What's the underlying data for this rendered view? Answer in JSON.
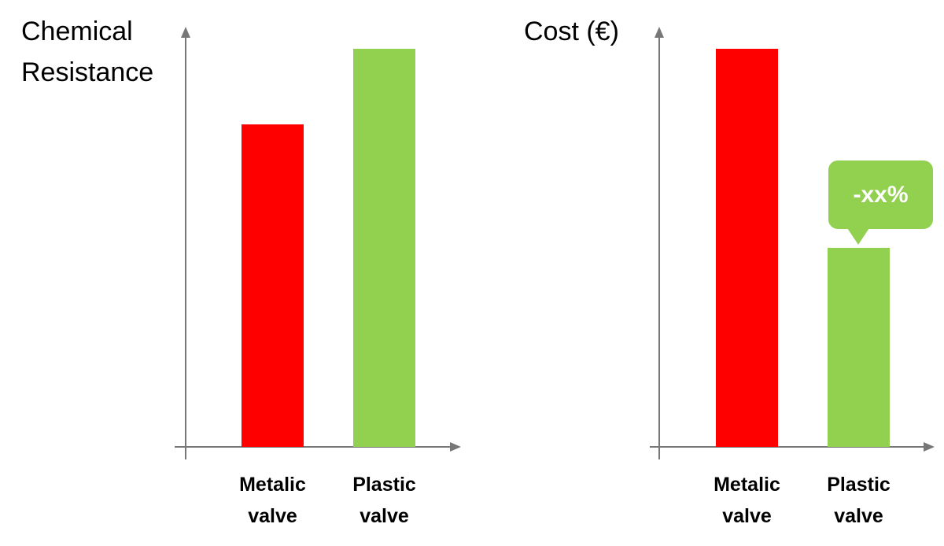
{
  "chart_data": [
    {
      "type": "bar",
      "title": "Chemical Resistance",
      "categories": [
        "Metalic valve",
        "Plastic valve"
      ],
      "values": [
        81,
        100
      ],
      "colors": [
        "#ff0000",
        "#92d050"
      ],
      "ylim": [
        0,
        100
      ]
    },
    {
      "type": "bar",
      "title": "Cost (€)",
      "categories": [
        "Metalic valve",
        "Plastic valve"
      ],
      "values": [
        100,
        50
      ],
      "colors": [
        "#ff0000",
        "#92d050"
      ],
      "ylim": [
        0,
        100
      ],
      "annotation": "-xx%"
    }
  ]
}
